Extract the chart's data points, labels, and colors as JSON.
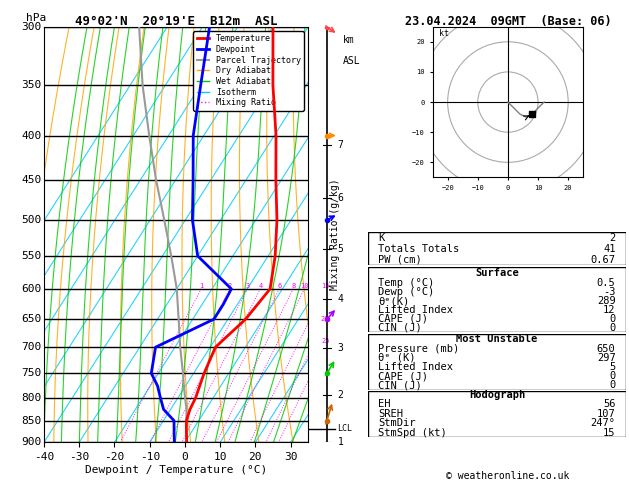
{
  "title_left": "49°02'N  20°19'E  B12m  ASL",
  "title_right": "23.04.2024  09GMT  (Base: 06)",
  "xlabel": "Dewpoint / Temperature (°C)",
  "p_min": 300,
  "p_max": 900,
  "t_min": -40,
  "t_max": 35,
  "pressure_levels": [
    300,
    350,
    400,
    450,
    500,
    550,
    600,
    650,
    700,
    750,
    800,
    850,
    900
  ],
  "temp_profile": {
    "pressure": [
      900,
      875,
      850,
      825,
      800,
      775,
      750,
      700,
      650,
      600,
      550,
      500,
      450,
      400,
      350,
      300
    ],
    "temp": [
      0.5,
      -1.5,
      -3.5,
      -4.5,
      -5.0,
      -6.0,
      -7.0,
      -8.5,
      -5.0,
      -3.5,
      -8.0,
      -14.0,
      -21.5,
      -29.5,
      -39.5,
      -50.0
    ]
  },
  "dewp_profile": {
    "pressure": [
      900,
      875,
      850,
      825,
      800,
      775,
      750,
      700,
      650,
      625,
      600,
      550,
      500,
      450,
      400,
      350,
      300
    ],
    "dewp": [
      -3.0,
      -5.0,
      -7.0,
      -12.0,
      -15.0,
      -18.0,
      -22.0,
      -25.5,
      -14.0,
      -14.0,
      -14.5,
      -30.0,
      -38.0,
      -45.0,
      -53.0,
      -60.0,
      -68.0
    ]
  },
  "parcel_profile": {
    "pressure": [
      900,
      875,
      850,
      825,
      800,
      775,
      750,
      700,
      650,
      600,
      550,
      500,
      450,
      400,
      350,
      300
    ],
    "temp": [
      0.5,
      -1.5,
      -3.5,
      -5.5,
      -8.0,
      -10.5,
      -13.0,
      -18.5,
      -24.0,
      -30.0,
      -37.5,
      -46.0,
      -55.5,
      -65.5,
      -76.5,
      -88.0
    ]
  },
  "isotherm_color": "#00ccff",
  "dry_adiabat_color": "#ffa500",
  "wet_adiabat_color": "#00cc00",
  "mixing_ratio_color": "#ff00ff",
  "temp_color": "#ff0000",
  "dewp_color": "#0000ff",
  "parcel_color": "#999999",
  "bg_color": "#ffffff",
  "mixing_ratios": [
    1,
    2,
    3,
    4,
    6,
    8,
    10,
    15,
    20,
    25
  ],
  "km_ticks": [
    1,
    2,
    3,
    4,
    5,
    6,
    7
  ],
  "lcl_pressure": 868,
  "wind_barbs": {
    "pressure": [
      300,
      400,
      500,
      650,
      750,
      850
    ],
    "colors": [
      "#ff4444",
      "#ff8800",
      "#0000ff",
      "#aa00ff",
      "#00cc00",
      "#cc6600"
    ],
    "speeds": [
      15,
      10,
      8,
      5,
      3,
      2
    ],
    "dirs": [
      290,
      270,
      255,
      240,
      230,
      210
    ]
  },
  "stats": {
    "K": 2,
    "TotalsT": 41,
    "PW": 0.67,
    "SurfTemp": 0.5,
    "SurfDewp": -3,
    "theta_e_surf": 289,
    "LI_surf": 12,
    "CAPE_surf": 0,
    "CIN_surf": 0,
    "MU_pressure": 650,
    "theta_e_mu": 297,
    "LI_mu": 5,
    "CAPE_mu": 0,
    "CIN_mu": 0,
    "EH": 56,
    "SREH": 107,
    "StmDir": 247,
    "StmSpd": 15
  }
}
